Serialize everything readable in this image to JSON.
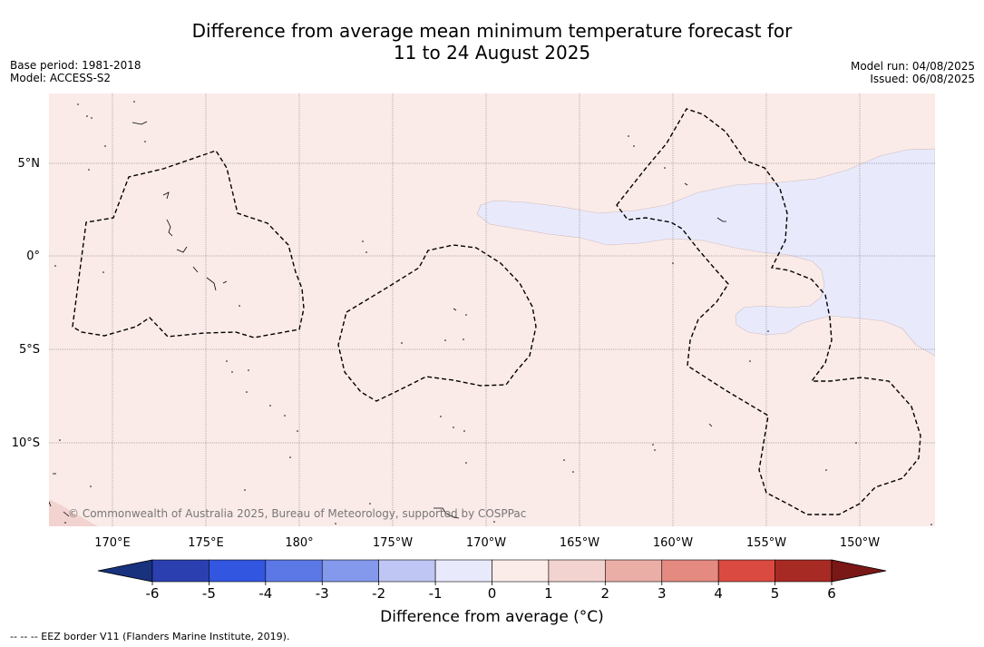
{
  "title_line1": "Difference from average mean minimum temperature forecast for",
  "title_line2": "11 to 24 August 2025",
  "base_period": "Base period: 1981-2018",
  "model": "Model: ACCESS-S2",
  "model_run": "Model run: 04/08/2025",
  "issued": "Issued: 06/08/2025",
  "copyright": "© Commonwealth of Australia 2025, Bureau of Meteorology, supported by COSPPac",
  "lat_labels": [
    "5°N",
    "0°",
    "5°S",
    "10°S"
  ],
  "lon_labels": [
    "170°E",
    "175°E",
    "180°",
    "175°W",
    "170°W",
    "165°W",
    "160°W",
    "155°W",
    "150°W"
  ],
  "colorbar": {
    "title": "Difference from average (°C)",
    "ticks": [
      "-6",
      "-5",
      "-4",
      "-3",
      "-2",
      "-1",
      "0",
      "1",
      "2",
      "3",
      "4",
      "5",
      "6"
    ],
    "colors": [
      "#18327d",
      "#2c3fb0",
      "#3356e0",
      "#5b78e6",
      "#8499ec",
      "#bfc6f4",
      "#e8eafc",
      "#fbecea",
      "#f2d3d0",
      "#ebaea7",
      "#e48a80",
      "#db4a40",
      "#a82a24",
      "#7a1717"
    ],
    "shading_colors": {
      "warm_light": "#fbebe8",
      "cool_light": "#e8eafc",
      "warm_2": "#f2d3d0"
    }
  },
  "footnote": "--  --  -- EEZ border V11 (Flanders Marine Institute, 2019)."
}
